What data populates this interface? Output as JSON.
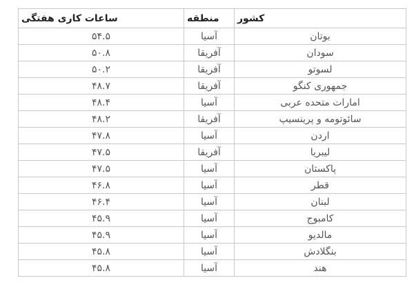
{
  "table": {
    "headers": {
      "hours": "ساعات کاری هفتگی",
      "region": "منطقه",
      "country": "کشور"
    },
    "rows": [
      {
        "country": "بوتان",
        "region": "آسیا",
        "hours": "۵۴.۵"
      },
      {
        "country": "سودان",
        "region": "آفریقا",
        "hours": "۵۰.۸"
      },
      {
        "country": "لسوتو",
        "region": "آفریقا",
        "hours": "۵۰.۲"
      },
      {
        "country": "جمهوری کنگو",
        "region": "آفریقا",
        "hours": "۴۸.۷"
      },
      {
        "country": "امارات متحده عربی",
        "region": "آسیا",
        "hours": "۴۸.۴"
      },
      {
        "country": "سائوتومه و پرینسیپ",
        "region": "آفریقا",
        "hours": "۴۸.۲"
      },
      {
        "country": "اردن",
        "region": "آسیا",
        "hours": "۴۷.۸"
      },
      {
        "country": "لیبریا",
        "region": "آفریقا",
        "hours": "۴۷.۵"
      },
      {
        "country": "پاکستان",
        "region": "آسیا",
        "hours": "۴۷.۵"
      },
      {
        "country": "قطر",
        "region": "آسیا",
        "hours": "۴۶.۸"
      },
      {
        "country": "لبنان",
        "region": "آسیا",
        "hours": "۴۶.۴"
      },
      {
        "country": "کامبوج",
        "region": "آسیا",
        "hours": "۴۵.۹"
      },
      {
        "country": "مالدیو",
        "region": "آسیا",
        "hours": "۴۵.۹"
      },
      {
        "country": "بنگلادش",
        "region": "آسیا",
        "hours": "۴۵.۸"
      },
      {
        "country": "هند",
        "region": "آسیا",
        "hours": "۴۵.۸"
      }
    ]
  }
}
